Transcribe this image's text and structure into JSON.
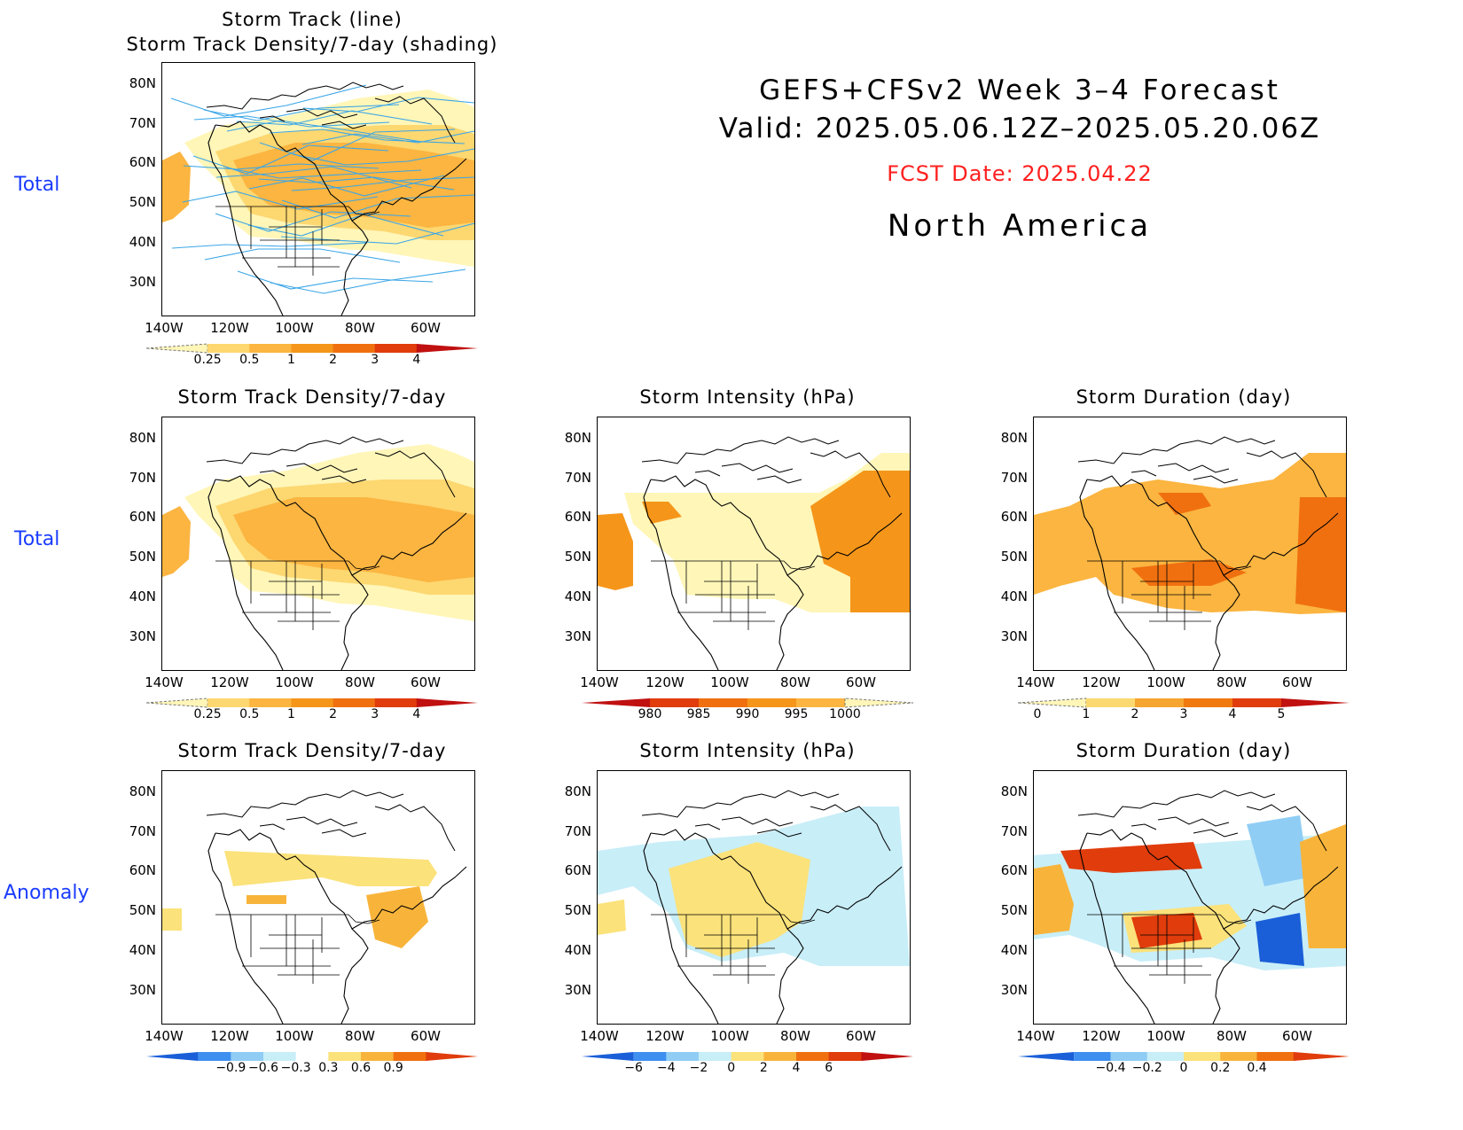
{
  "header": {
    "title_line1": "GEFS+CFSv2 Week 3–4 Forecast",
    "title_line2": "Valid: 2025.05.06.12Z–2025.05.20.06Z",
    "fcst_date": "FCST Date: 2025.04.22",
    "region": "North America"
  },
  "row_labels": {
    "row1": "Total",
    "row2": "Total",
    "row3": "Anomaly"
  },
  "lat_labels": [
    "80N",
    "70N",
    "60N",
    "50N",
    "40N",
    "30N"
  ],
  "lon_labels": [
    "140W",
    "120W",
    "100W",
    "80W",
    "60W"
  ],
  "panels": {
    "p1": {
      "title_line1": "Storm Track (line)",
      "title_line2": "Storm Track Density/7-day (shading)",
      "colorbar": {
        "labels": [
          "0.25",
          "0.5",
          "1",
          "2",
          "3",
          "4"
        ],
        "colors": [
          "#fff6b8",
          "#fdd770",
          "#fbb540",
          "#f5961a",
          "#f07010",
          "#e03c0c",
          "#c01010"
        ]
      }
    },
    "p2": {
      "title": "Storm Track Density/7-day",
      "colorbar": {
        "labels": [
          "0.25",
          "0.5",
          "1",
          "2",
          "3",
          "4"
        ],
        "colors": [
          "#fff6b8",
          "#fdd770",
          "#fbb540",
          "#f5961a",
          "#f07010",
          "#e03c0c",
          "#c01010"
        ]
      }
    },
    "p3": {
      "title": "Storm Intensity (hPa)",
      "colorbar": {
        "labels": [
          "980",
          "985",
          "990",
          "995",
          "1000"
        ],
        "colors": [
          "#c01010",
          "#e03c0c",
          "#f07010",
          "#f5961a",
          "#fbb540",
          "#fff6b8"
        ]
      }
    },
    "p4": {
      "title": "Storm Duration (day)",
      "colorbar": {
        "labels": [
          "0",
          "1",
          "2",
          "3",
          "4",
          "5"
        ],
        "colors": [
          "#fff6b8",
          "#fbd870",
          "#f5a530",
          "#f07a10",
          "#e03c0c",
          "#c01010"
        ]
      }
    },
    "p5": {
      "title": "Storm Track Density/7-day",
      "colorbar": {
        "labels": [
          "−0.9",
          "−0.6",
          "−0.3",
          "0.3",
          "0.6",
          "0.9"
        ],
        "colors": [
          "#1a5fd8",
          "#3d8ff0",
          "#90cdf5",
          "#c8eef8",
          "#ffffff",
          "#fbe27a",
          "#f8b43a",
          "#f07010",
          "#e03c0c"
        ]
      }
    },
    "p6": {
      "title": "Storm Intensity (hPa)",
      "colorbar": {
        "labels": [
          "−6",
          "−4",
          "−2",
          "0",
          "2",
          "4",
          "6"
        ],
        "colors": [
          "#1a5fd8",
          "#3d8ff0",
          "#90cdf5",
          "#c8eef8",
          "#fbe27a",
          "#f8b43a",
          "#f07010",
          "#e03c0c",
          "#c01010"
        ]
      }
    },
    "p7": {
      "title": "Storm Duration (day)",
      "colorbar": {
        "labels": [
          "−0.4",
          "−0.2",
          "0",
          "0.2",
          "0.4"
        ],
        "colors": [
          "#1a5fd8",
          "#3d8ff0",
          "#90cdf5",
          "#c8eef8",
          "#fbe27a",
          "#f8b43a",
          "#f07010",
          "#e03c0c"
        ]
      }
    }
  }
}
